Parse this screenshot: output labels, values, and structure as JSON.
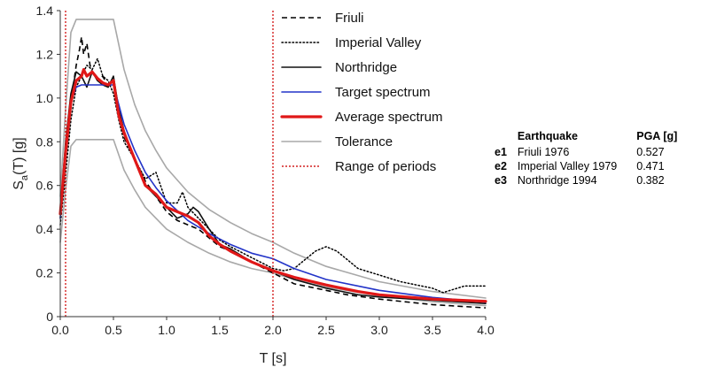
{
  "chart_data": {
    "type": "line",
    "xlabel": "T [s]",
    "ylabel": {
      "main": "S",
      "sub": "a",
      "rest": "(T) [g]"
    },
    "xlim": [
      0,
      4
    ],
    "ylim": [
      0,
      1.4
    ],
    "xticks": [
      "0.0",
      "0.5",
      "1.0",
      "1.5",
      "2.0",
      "2.5",
      "3.0",
      "3.5",
      "4.0"
    ],
    "yticks": [
      "0",
      "0.2",
      "0.4",
      "0.6",
      "0.8",
      "1.0",
      "1.2",
      "1.4"
    ],
    "grid": "none",
    "legend_position": "top-right",
    "series": [
      {
        "name": "Friuli",
        "color": "#000000",
        "style": "dashed",
        "x": [
          0,
          0.05,
          0.1,
          0.15,
          0.18,
          0.2,
          0.22,
          0.25,
          0.28,
          0.3,
          0.35,
          0.4,
          0.45,
          0.5,
          0.55,
          0.6,
          0.7,
          0.8,
          0.9,
          1.0,
          1.1,
          1.2,
          1.3,
          1.4,
          1.5,
          1.6,
          1.8,
          2.0,
          2.2,
          2.5,
          2.7,
          3.0,
          3.5,
          4.0
        ],
        "y": [
          0.45,
          0.75,
          0.98,
          1.15,
          1.22,
          1.28,
          1.2,
          1.25,
          1.15,
          1.12,
          1.08,
          1.1,
          1.05,
          1.08,
          0.95,
          0.82,
          0.72,
          0.62,
          0.55,
          0.48,
          0.44,
          0.42,
          0.4,
          0.36,
          0.32,
          0.3,
          0.25,
          0.2,
          0.15,
          0.12,
          0.1,
          0.08,
          0.055,
          0.04
        ]
      },
      {
        "name": "Imperial Valley",
        "color": "#000000",
        "style": "dotted",
        "x": [
          0,
          0.05,
          0.1,
          0.15,
          0.2,
          0.25,
          0.3,
          0.35,
          0.4,
          0.45,
          0.5,
          0.55,
          0.6,
          0.7,
          0.8,
          0.9,
          1.0,
          1.1,
          1.15,
          1.2,
          1.3,
          1.4,
          1.5,
          1.6,
          1.8,
          2.0,
          2.1,
          2.2,
          2.3,
          2.4,
          2.5,
          2.6,
          2.7,
          2.8,
          3.0,
          3.2,
          3.5,
          3.6,
          3.8,
          4.0
        ],
        "y": [
          0.42,
          0.65,
          0.9,
          1.05,
          1.1,
          1.15,
          1.13,
          1.18,
          1.1,
          1.08,
          1.02,
          0.9,
          0.8,
          0.72,
          0.63,
          0.66,
          0.52,
          0.52,
          0.57,
          0.5,
          0.45,
          0.4,
          0.35,
          0.32,
          0.27,
          0.22,
          0.21,
          0.22,
          0.26,
          0.3,
          0.32,
          0.3,
          0.26,
          0.22,
          0.19,
          0.16,
          0.13,
          0.11,
          0.14,
          0.14
        ]
      },
      {
        "name": "Northridge",
        "color": "#111111",
        "style": "solid",
        "x": [
          0,
          0.05,
          0.1,
          0.15,
          0.2,
          0.25,
          0.3,
          0.35,
          0.4,
          0.45,
          0.5,
          0.55,
          0.6,
          0.7,
          0.8,
          0.9,
          1.0,
          1.1,
          1.2,
          1.25,
          1.3,
          1.4,
          1.5,
          1.6,
          1.8,
          2.0,
          2.2,
          2.5,
          2.8,
          3.0,
          3.5,
          4.0
        ],
        "y": [
          0.48,
          0.8,
          1.02,
          1.12,
          1.1,
          1.05,
          1.12,
          1.08,
          1.06,
          1.05,
          1.1,
          0.95,
          0.85,
          0.72,
          0.6,
          0.55,
          0.5,
          0.45,
          0.47,
          0.5,
          0.48,
          0.4,
          0.33,
          0.31,
          0.25,
          0.21,
          0.17,
          0.13,
          0.1,
          0.09,
          0.075,
          0.06
        ]
      },
      {
        "name": "Target spectrum",
        "color": "#2233c8",
        "style": "solid",
        "x": [
          0,
          0.05,
          0.1,
          0.15,
          0.2,
          0.3,
          0.4,
          0.5,
          0.6,
          0.7,
          0.8,
          0.9,
          1.0,
          1.2,
          1.4,
          1.6,
          1.8,
          2.0,
          2.2,
          2.5,
          3.0,
          3.5,
          4.0
        ],
        "y": [
          0.45,
          0.75,
          0.98,
          1.05,
          1.06,
          1.06,
          1.06,
          1.06,
          0.88,
          0.76,
          0.66,
          0.59,
          0.53,
          0.44,
          0.38,
          0.33,
          0.29,
          0.265,
          0.22,
          0.17,
          0.12,
          0.088,
          0.066
        ]
      },
      {
        "name": "Average spectrum",
        "color": "#e01818",
        "style": "solid",
        "x": [
          0,
          0.05,
          0.1,
          0.15,
          0.2,
          0.22,
          0.25,
          0.3,
          0.35,
          0.4,
          0.45,
          0.5,
          0.55,
          0.6,
          0.7,
          0.8,
          0.9,
          1.0,
          1.1,
          1.2,
          1.3,
          1.4,
          1.5,
          1.6,
          1.8,
          2.0,
          2.2,
          2.5,
          2.8,
          3.0,
          3.5,
          4.0
        ],
        "y": [
          0.47,
          0.75,
          0.98,
          1.08,
          1.1,
          1.13,
          1.1,
          1.12,
          1.09,
          1.07,
          1.06,
          1.08,
          0.92,
          0.84,
          0.72,
          0.6,
          0.56,
          0.5,
          0.48,
          0.46,
          0.43,
          0.37,
          0.33,
          0.3,
          0.25,
          0.21,
          0.18,
          0.145,
          0.115,
          0.1,
          0.08,
          0.07
        ]
      },
      {
        "name": "Tolerance",
        "color": "#a8a8a8",
        "style": "solid",
        "x": [
          0,
          0.05,
          0.1,
          0.15,
          0.2,
          0.3,
          0.4,
          0.5,
          0.6,
          0.7,
          0.8,
          0.9,
          1.0,
          1.2,
          1.4,
          1.6,
          1.8,
          2.0,
          2.2,
          2.5,
          3.0,
          3.5,
          4.0
        ],
        "y": [
          0.55,
          0.95,
          1.3,
          1.36,
          1.36,
          1.36,
          1.36,
          1.36,
          1.13,
          0.97,
          0.85,
          0.76,
          0.68,
          0.57,
          0.49,
          0.43,
          0.38,
          0.34,
          0.29,
          0.23,
          0.16,
          0.115,
          0.085
        ]
      },
      {
        "name": "",
        "color": "#a8a8a8",
        "style": "solid",
        "x": [
          0,
          0.05,
          0.1,
          0.15,
          0.2,
          0.3,
          0.4,
          0.5,
          0.6,
          0.7,
          0.8,
          0.9,
          1.0,
          1.2,
          1.4,
          1.6,
          1.8,
          2.0,
          2.2,
          2.5,
          3.0,
          3.5,
          4.0
        ],
        "y": [
          0.34,
          0.58,
          0.78,
          0.81,
          0.81,
          0.81,
          0.81,
          0.81,
          0.67,
          0.58,
          0.5,
          0.45,
          0.4,
          0.34,
          0.29,
          0.25,
          0.22,
          0.2,
          0.17,
          0.135,
          0.095,
          0.068,
          0.05
        ]
      }
    ],
    "period_range": {
      "name": "Range of periods",
      "color": "#d42020",
      "style": "dotted",
      "values": [
        0.05,
        2.0
      ]
    },
    "legend": [
      {
        "label": "Friuli",
        "color": "#000000",
        "style": "dashed"
      },
      {
        "label": "Imperial Valley",
        "color": "#000000",
        "style": "dotted"
      },
      {
        "label": "Northridge",
        "color": "#111111",
        "style": "solid"
      },
      {
        "label": "Target spectrum",
        "color": "#2233c8",
        "style": "solid"
      },
      {
        "label": "Average spectrum",
        "color": "#e01818",
        "style": "thick"
      },
      {
        "label": "Tolerance",
        "color": "#a8a8a8",
        "style": "solid"
      },
      {
        "label": "Range of periods",
        "color": "#d42020",
        "style": "dotted-thin"
      }
    ]
  },
  "earthquake_table": {
    "headers": {
      "earthquake": "Earthquake",
      "pga": "PGA [g]"
    },
    "rows": [
      {
        "code": "e1",
        "name": "Friuli 1976",
        "pga": "0.527"
      },
      {
        "code": "e2",
        "name": "Imperial Valley 1979",
        "pga": "0.471"
      },
      {
        "code": "e3",
        "name": "Northridge 1994",
        "pga": "0.382"
      }
    ]
  }
}
